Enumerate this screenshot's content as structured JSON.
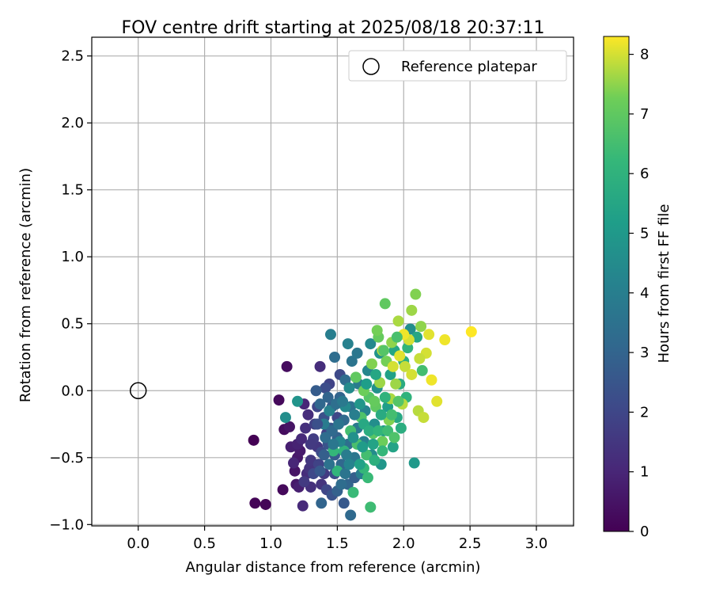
{
  "chart_data": {
    "type": "scatter",
    "title": "FOV centre drift starting at 2025/08/18 20:37:11",
    "xlabel": "Angular distance from reference (arcmin)",
    "ylabel": "Rotation from reference (arcmin)",
    "xlim": [
      -0.35,
      3.28
    ],
    "ylim": [
      -1.01,
      2.64
    ],
    "xticks": [
      "0.0",
      "0.5",
      "1.0",
      "1.5",
      "2.0",
      "2.5",
      "3.0"
    ],
    "yticks": [
      "−1.0",
      "−0.5",
      "0.0",
      "0.5",
      "1.0",
      "1.5",
      "2.0",
      "2.5"
    ],
    "xtick_values": [
      0.0,
      0.5,
      1.0,
      1.5,
      2.0,
      2.5,
      3.0
    ],
    "ytick_values": [
      -1.0,
      -0.5,
      0.0,
      0.5,
      1.0,
      1.5,
      2.0,
      2.5
    ],
    "grid": true,
    "legend": {
      "placement": "top-right",
      "entries": [
        "Reference platepar"
      ]
    },
    "reference_point": {
      "x": 0.0,
      "y": 0.0
    },
    "colorbar": {
      "label": "Hours from first FF file",
      "range": [
        0,
        8.3
      ],
      "ticks": [
        "0",
        "1",
        "2",
        "3",
        "4",
        "5",
        "6",
        "7",
        "8"
      ],
      "tick_values": [
        0,
        1,
        2,
        3,
        4,
        5,
        6,
        7,
        8
      ],
      "colormap": "viridis"
    },
    "points": [
      [
        0.87,
        -0.37,
        0.0
      ],
      [
        0.88,
        -0.84,
        0.1
      ],
      [
        0.96,
        -0.85,
        0.1
      ],
      [
        1.06,
        -0.07,
        0.2
      ],
      [
        1.09,
        -0.74,
        0.2
      ],
      [
        1.1,
        -0.29,
        0.3
      ],
      [
        1.12,
        0.18,
        0.3
      ],
      [
        1.14,
        -0.27,
        0.5
      ],
      [
        1.18,
        -0.6,
        0.5
      ],
      [
        1.19,
        -0.7,
        0.6
      ],
      [
        1.2,
        -0.5,
        0.6
      ],
      [
        1.22,
        -0.45,
        0.7
      ],
      [
        1.21,
        -0.72,
        0.8
      ],
      [
        1.24,
        -0.86,
        1.1
      ],
      [
        1.25,
        -0.1,
        1.0
      ],
      [
        1.27,
        -0.62,
        1.2
      ],
      [
        1.29,
        -0.58,
        1.4
      ],
      [
        1.3,
        -0.72,
        1.3
      ],
      [
        1.35,
        -0.42,
        1.5
      ],
      [
        1.37,
        0.18,
        1.2
      ],
      [
        1.38,
        -0.7,
        1.4
      ],
      [
        1.4,
        -0.62,
        1.6
      ],
      [
        1.42,
        -0.74,
        2.0
      ],
      [
        1.42,
        -0.32,
        1.8
      ],
      [
        1.44,
        0.05,
        1.9
      ],
      [
        1.46,
        -0.78,
        2.4
      ],
      [
        1.48,
        -0.62,
        2.2
      ],
      [
        1.5,
        -0.2,
        2.0
      ],
      [
        1.52,
        0.12,
        2.1
      ],
      [
        1.55,
        -0.84,
        2.6
      ],
      [
        1.58,
        -0.7,
        3.0
      ],
      [
        1.6,
        -0.93,
        3.2
      ],
      [
        1.63,
        -0.65,
        2.8
      ],
      [
        1.38,
        -0.84,
        3.0
      ],
      [
        1.17,
        -0.54,
        1.0
      ],
      [
        1.15,
        -0.42,
        0.8
      ],
      [
        1.2,
        -0.4,
        0.9
      ],
      [
        1.23,
        -0.36,
        1.1
      ],
      [
        1.26,
        -0.28,
        1.3
      ],
      [
        1.28,
        -0.18,
        1.2
      ],
      [
        1.3,
        -0.52,
        1.5
      ],
      [
        1.32,
        -0.36,
        1.7
      ],
      [
        1.33,
        -0.25,
        1.8
      ],
      [
        1.35,
        -0.12,
        2.0
      ],
      [
        1.36,
        -0.55,
        1.9
      ],
      [
        1.38,
        -0.46,
        2.1
      ],
      [
        1.4,
        -0.2,
        2.3
      ],
      [
        1.41,
        0.02,
        2.2
      ],
      [
        1.43,
        -0.4,
        2.4
      ],
      [
        1.45,
        -0.28,
        2.5
      ],
      [
        1.46,
        -0.12,
        2.6
      ],
      [
        1.48,
        -0.48,
        2.7
      ],
      [
        1.5,
        -0.35,
        2.9
      ],
      [
        1.52,
        -0.05,
        3.0
      ],
      [
        1.53,
        -0.55,
        3.1
      ],
      [
        1.55,
        -0.22,
        3.2
      ],
      [
        1.56,
        0.08,
        3.3
      ],
      [
        1.58,
        -0.4,
        3.4
      ],
      [
        1.6,
        -0.12,
        3.5
      ],
      [
        1.61,
        0.22,
        3.6
      ],
      [
        1.63,
        -0.5,
        3.7
      ],
      [
        1.65,
        -0.28,
        3.8
      ],
      [
        1.66,
        0.05,
        3.9
      ],
      [
        1.68,
        -0.62,
        4.0
      ],
      [
        1.7,
        -0.38,
        4.1
      ],
      [
        1.71,
        -0.15,
        4.2
      ],
      [
        1.73,
        0.15,
        4.3
      ],
      [
        1.75,
        0.35,
        4.4
      ],
      [
        1.76,
        -0.48,
        4.5
      ],
      [
        1.78,
        -0.25,
        4.6
      ],
      [
        1.8,
        0.02,
        4.7
      ],
      [
        1.82,
        0.28,
        4.8
      ],
      [
        1.83,
        -0.55,
        4.9
      ],
      [
        1.85,
        -0.3,
        5.0
      ],
      [
        1.2,
        -0.08,
        4.8
      ],
      [
        1.11,
        -0.2,
        4.6
      ],
      [
        1.45,
        0.42,
        4.0
      ],
      [
        1.58,
        0.35,
        4.1
      ],
      [
        1.65,
        0.28,
        3.7
      ],
      [
        2.05,
        0.46,
        4.6
      ],
      [
        2.08,
        -0.54,
        5.0
      ],
      [
        2.1,
        0.4,
        5.5
      ],
      [
        1.88,
        -0.12,
        5.2
      ],
      [
        1.9,
        0.12,
        5.3
      ],
      [
        1.92,
        -0.42,
        5.4
      ],
      [
        1.93,
        0.3,
        5.5
      ],
      [
        1.95,
        -0.2,
        5.6
      ],
      [
        1.97,
        0.05,
        5.7
      ],
      [
        1.98,
        -0.28,
        5.8
      ],
      [
        2.0,
        0.22,
        5.9
      ],
      [
        2.02,
        -0.05,
        6.0
      ],
      [
        2.03,
        0.32,
        6.1
      ],
      [
        1.47,
        -0.45,
        6.2
      ],
      [
        1.5,
        -0.6,
        6.1
      ],
      [
        1.55,
        -0.45,
        6.0
      ],
      [
        1.62,
        -0.76,
        6.3
      ],
      [
        1.7,
        -0.58,
        6.2
      ],
      [
        1.73,
        -0.65,
        6.3
      ],
      [
        1.75,
        -0.87,
        6.4
      ],
      [
        1.6,
        -0.3,
        6.5
      ],
      [
        1.65,
        -0.4,
        6.6
      ],
      [
        1.68,
        -0.2,
        6.7
      ],
      [
        1.72,
        -0.48,
        6.5
      ],
      [
        1.74,
        -0.05,
        6.8
      ],
      [
        1.77,
        -0.32,
        6.9
      ],
      [
        1.79,
        -0.12,
        7.0
      ],
      [
        1.81,
        0.4,
        7.1
      ],
      [
        1.84,
        -0.38,
        7.2
      ],
      [
        1.86,
        0.65,
        7.0
      ],
      [
        1.87,
        0.22,
        7.3
      ],
      [
        1.89,
        -0.22,
        7.4
      ],
      [
        1.91,
        0.36,
        7.5
      ],
      [
        1.94,
        0.05,
        7.6
      ],
      [
        1.96,
        0.52,
        7.7
      ],
      [
        1.99,
        -0.1,
        7.8
      ],
      [
        2.01,
        0.18,
        7.9
      ],
      [
        2.04,
        0.38,
        8.0
      ],
      [
        2.06,
        0.6,
        7.6
      ],
      [
        2.09,
        0.72,
        7.4
      ],
      [
        2.11,
        -0.15,
        7.8
      ],
      [
        2.13,
        0.48,
        7.5
      ],
      [
        2.15,
        -0.2,
        7.9
      ],
      [
        2.17,
        0.28,
        8.0
      ],
      [
        2.19,
        0.42,
        8.1
      ],
      [
        2.21,
        0.08,
        8.2
      ],
      [
        2.25,
        -0.08,
        8.1
      ],
      [
        2.31,
        0.38,
        8.2
      ],
      [
        2.51,
        0.44,
        8.3
      ],
      [
        1.64,
        0.1,
        7.0
      ],
      [
        1.7,
        0.0,
        7.2
      ],
      [
        1.76,
        0.2,
        7.4
      ],
      [
        1.82,
        0.06,
        7.6
      ],
      [
        1.78,
        -0.08,
        7.1
      ],
      [
        1.84,
        0.3,
        7.8
      ],
      [
        1.9,
        -0.06,
        7.7
      ],
      [
        1.92,
        0.18,
        8.0
      ],
      [
        1.97,
        0.26,
        8.1
      ],
      [
        2.0,
        0.42,
        8.2
      ],
      [
        2.06,
        0.12,
        8.0
      ],
      [
        2.12,
        0.24,
        7.9
      ],
      [
        1.8,
        0.45,
        7.3
      ],
      [
        1.85,
        0.3,
        6.8
      ],
      [
        1.95,
        0.4,
        6.6
      ],
      [
        2.14,
        0.15,
        6.5
      ],
      [
        1.4,
        -0.25,
        3.9
      ],
      [
        1.44,
        -0.15,
        4.1
      ],
      [
        1.48,
        0.25,
        3.3
      ],
      [
        1.52,
        -0.38,
        4.3
      ],
      [
        1.56,
        -0.12,
        4.4
      ],
      [
        1.59,
        0.02,
        4.5
      ],
      [
        1.62,
        -0.35,
        4.7
      ],
      [
        1.67,
        -0.1,
        4.9
      ],
      [
        1.69,
        -0.42,
        5.1
      ],
      [
        1.72,
        0.05,
        5.2
      ],
      [
        1.77,
        -0.4,
        5.4
      ],
      [
        1.79,
        0.12,
        5.5
      ],
      [
        1.83,
        -0.18,
        5.7
      ],
      [
        1.86,
        -0.05,
        6.0
      ],
      [
        1.25,
        -0.68,
        1.6
      ],
      [
        1.3,
        -0.4,
        1.6
      ],
      [
        1.32,
        -0.62,
        2.1
      ],
      [
        1.35,
        -0.25,
        2.3
      ],
      [
        1.37,
        -0.6,
        2.6
      ],
      [
        1.4,
        -0.48,
        2.8
      ],
      [
        1.43,
        -0.05,
        3.0
      ],
      [
        1.46,
        -0.3,
        3.2
      ],
      [
        1.49,
        -0.1,
        3.4
      ],
      [
        1.51,
        -0.25,
        3.6
      ],
      [
        1.54,
        -0.08,
        3.8
      ],
      [
        1.57,
        -0.48,
        3.9
      ],
      [
        1.34,
        0.0,
        2.7
      ],
      [
        1.37,
        -0.1,
        3.1
      ],
      [
        1.41,
        -0.35,
        3.3
      ],
      [
        1.44,
        -0.55,
        3.5
      ],
      [
        1.47,
        -0.4,
        3.7
      ],
      [
        1.5,
        -0.75,
        2.9
      ],
      [
        1.53,
        -0.7,
        3.3
      ],
      [
        1.56,
        -0.62,
        3.6
      ],
      [
        1.59,
        -0.55,
        4.2
      ],
      [
        1.63,
        -0.18,
        4.0
      ],
      [
        1.67,
        -0.55,
        5.3
      ],
      [
        1.7,
        -0.25,
        5.6
      ],
      [
        1.74,
        -0.3,
        5.8
      ],
      [
        1.78,
        -0.52,
        5.9
      ],
      [
        1.81,
        -0.3,
        6.1
      ],
      [
        1.84,
        -0.45,
        6.2
      ],
      [
        1.88,
        -0.3,
        6.4
      ],
      [
        1.91,
        -0.18,
        6.5
      ],
      [
        1.93,
        -0.35,
        6.7
      ],
      [
        1.96,
        -0.08,
        6.8
      ]
    ]
  }
}
